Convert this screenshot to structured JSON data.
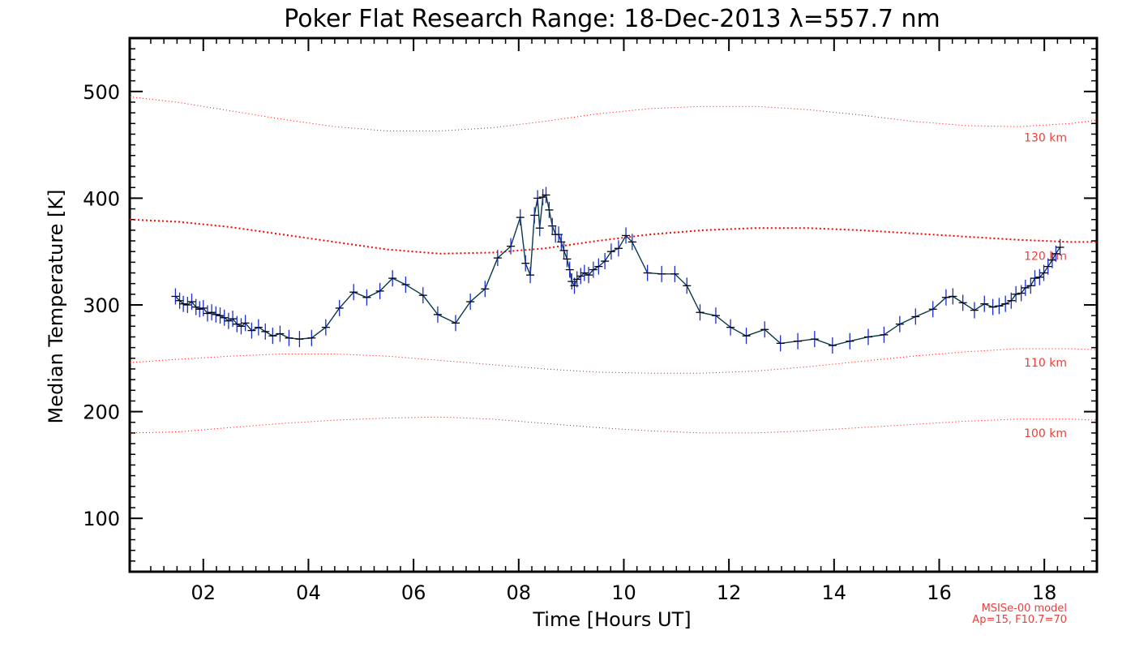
{
  "chart_data": {
    "type": "line",
    "title": "Poker Flat Research Range: 18-Dec-2013 λ=557.7 nm",
    "xlabel": "Time [Hours UT]",
    "ylabel": "Median Temperature [K]",
    "xlim": [
      0.6,
      19.0
    ],
    "ylim": [
      50,
      550
    ],
    "x_ticks": [
      2,
      4,
      6,
      8,
      10,
      12,
      14,
      16,
      18
    ],
    "x_tick_labels": [
      "02",
      "04",
      "06",
      "08",
      "10",
      "12",
      "14",
      "16",
      "18"
    ],
    "y_ticks": [
      100,
      200,
      300,
      400,
      500
    ],
    "y_tick_labels": [
      "100",
      "200",
      "300",
      "400",
      "500"
    ],
    "grid": false,
    "series": [
      {
        "color": "#0a3a4a",
        "marker": "plus",
        "x": [
          1.47,
          1.55,
          1.62,
          1.7,
          1.78,
          1.86,
          1.93,
          2.0,
          2.08,
          2.16,
          2.24,
          2.32,
          2.4,
          2.48,
          2.56,
          2.64,
          2.72,
          2.8,
          2.92,
          3.05,
          3.18,
          3.32,
          3.46,
          3.63,
          3.83,
          4.06,
          4.33,
          4.59,
          4.86,
          5.11,
          5.36,
          5.6,
          5.85,
          6.18,
          6.46,
          6.8,
          7.08,
          7.36,
          7.6,
          7.85,
          8.03,
          8.13,
          8.22,
          8.3,
          8.36,
          8.4,
          8.46,
          8.52,
          8.58,
          8.64,
          8.7,
          8.76,
          8.81,
          8.86,
          8.92,
          8.97,
          9.01,
          9.06,
          9.11,
          9.18,
          9.25,
          9.33,
          9.42,
          9.52,
          9.64,
          9.76,
          9.9,
          10.04,
          10.16,
          10.45,
          10.72,
          10.97,
          11.2,
          11.45,
          11.75,
          12.03,
          12.33,
          12.68,
          12.98,
          13.31,
          13.63,
          13.97,
          14.3,
          14.65,
          14.95,
          15.25,
          15.55,
          15.88,
          16.13,
          16.26,
          16.45,
          16.67,
          16.86,
          17.02,
          17.14,
          17.26,
          17.37,
          17.46,
          17.56,
          17.64,
          17.74,
          17.82,
          17.91,
          17.99,
          18.07,
          18.15,
          18.22,
          18.3
        ],
        "y": [
          308,
          304,
          301,
          300,
          303,
          298,
          296,
          297,
          292,
          293,
          291,
          290,
          288,
          285,
          287,
          282,
          280,
          283,
          276,
          279,
          275,
          271,
          273,
          269,
          268,
          269,
          279,
          297,
          312,
          307,
          313,
          325,
          319,
          309,
          291,
          283,
          303,
          315,
          344,
          355,
          382,
          339,
          328,
          384,
          400,
          372,
          401,
          403,
          389,
          374,
          366,
          366,
          359,
          351,
          343,
          333,
          322,
          318,
          324,
          327,
          330,
          328,
          333,
          336,
          341,
          350,
          353,
          365,
          359,
          330,
          329,
          329,
          318,
          293,
          290,
          279,
          271,
          277,
          264,
          266,
          268,
          262,
          266,
          270,
          272,
          282,
          289,
          296,
          307,
          308,
          302,
          295,
          301,
          298,
          299,
          301,
          304,
          310,
          311,
          316,
          318,
          325,
          326,
          330,
          336,
          342,
          348,
          354
        ]
      }
    ],
    "model_curves": [
      {
        "label": "130 km",
        "color": "#ff0000",
        "x": [
          0.6,
          1.5,
          2.5,
          3.5,
          4.5,
          5.5,
          6.5,
          7.5,
          8.5,
          9.5,
          10.5,
          11.5,
          12.5,
          13.5,
          14.5,
          15.5,
          16.5,
          17.5,
          18.5,
          19.0
        ],
        "y": [
          495,
          490,
          482,
          474,
          467,
          463,
          463,
          466,
          472,
          479,
          484,
          486,
          486,
          483,
          478,
          472,
          468,
          467,
          470,
          473
        ]
      },
      {
        "label": "120 km",
        "color": "#ff0000",
        "x": [
          0.6,
          1.5,
          2.5,
          3.5,
          4.5,
          5.5,
          6.5,
          7.5,
          8.5,
          9.5,
          10.5,
          11.5,
          12.5,
          13.5,
          14.5,
          15.5,
          16.5,
          17.5,
          18.5,
          19.0
        ],
        "y": [
          380,
          378,
          373,
          366,
          359,
          352,
          348,
          349,
          353,
          360,
          366,
          370,
          372,
          372,
          370,
          367,
          364,
          361,
          359,
          359
        ]
      },
      {
        "label": "110 km",
        "color": "#ff0000",
        "x": [
          0.6,
          1.5,
          2.5,
          3.5,
          4.5,
          5.5,
          6.5,
          7.5,
          8.5,
          9.5,
          10.5,
          11.5,
          12.5,
          13.5,
          14.5,
          15.5,
          16.5,
          17.5,
          18.5,
          19.0
        ],
        "y": [
          246,
          249,
          252,
          254,
          254,
          252,
          248,
          244,
          240,
          237,
          236,
          236,
          238,
          242,
          247,
          252,
          256,
          259,
          259,
          258
        ]
      },
      {
        "label": "100 km",
        "color": "#ff0000",
        "x": [
          0.6,
          1.5,
          2.5,
          3.5,
          4.5,
          5.5,
          6.5,
          7.5,
          8.5,
          9.5,
          10.5,
          11.5,
          12.5,
          13.5,
          14.5,
          15.5,
          16.5,
          17.5,
          18.5,
          19.0
        ],
        "y": [
          180,
          181,
          185,
          189,
          192,
          194,
          195,
          193,
          189,
          185,
          182,
          180,
          180,
          182,
          185,
          188,
          191,
          193,
          193,
          192
        ]
      }
    ],
    "model_note": [
      "MSISe-00 model",
      "Ap=15, F10.7=70"
    ]
  }
}
